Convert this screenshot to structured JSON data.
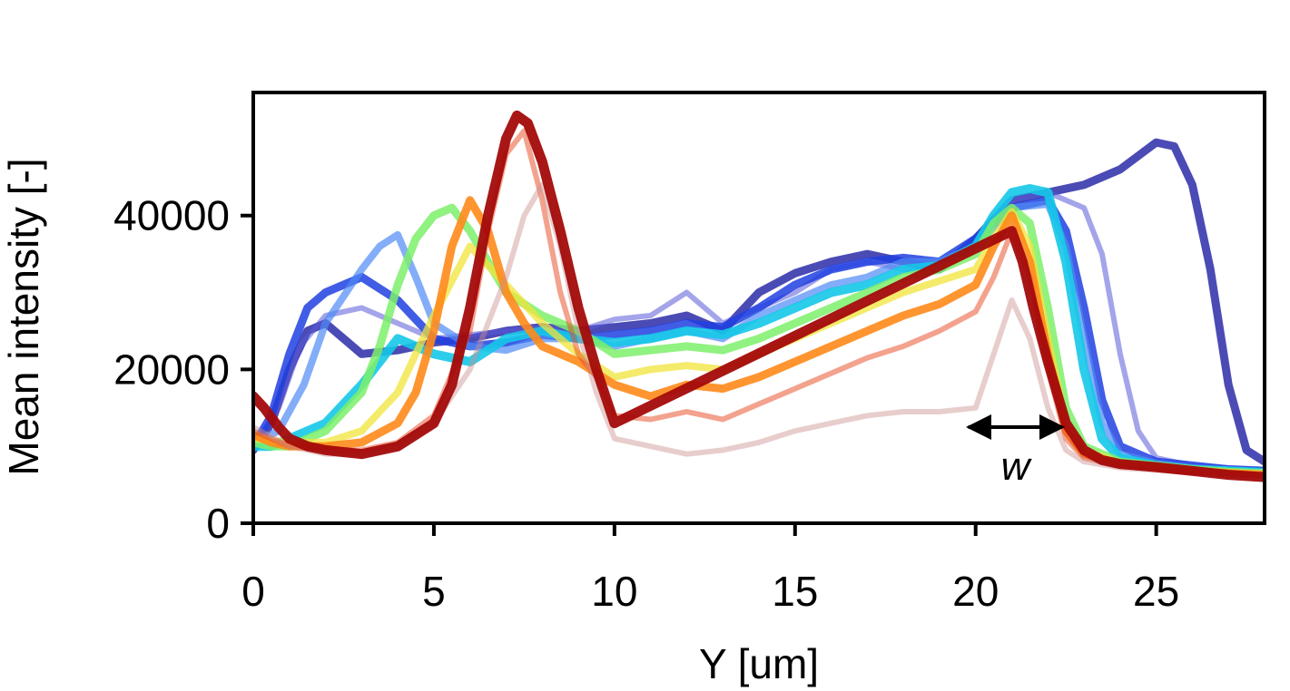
{
  "chart_data": {
    "type": "line",
    "title": "",
    "xlabel": "Y [um]",
    "ylabel": "Mean intensity [-]",
    "xlim": [
      0,
      28
    ],
    "ylim": [
      0,
      56000
    ],
    "xticks": [
      0,
      5,
      10,
      15,
      20,
      25
    ],
    "xtick_labels": [
      "0",
      "5",
      "10",
      "15",
      "20",
      "25"
    ],
    "yticks": [
      0,
      20000,
      40000
    ],
    "ytick_labels": [
      "0",
      "20000",
      "40000"
    ],
    "grid": false,
    "legend": "none",
    "colormap": "jet",
    "annotation": {
      "text": "w",
      "arrow_x": [
        19.8,
        22.4
      ],
      "arrow_y": 12500
    },
    "series": [
      {
        "color": "#2b2ba8",
        "opacity": 0.85,
        "width": 9,
        "x": [
          0,
          0.5,
          1,
          1.5,
          2,
          2.5,
          3,
          4,
          5,
          6,
          7,
          8,
          9,
          10,
          11,
          12,
          13,
          14,
          15,
          16,
          17,
          18,
          19,
          20,
          21,
          22,
          23,
          24,
          25,
          25.5,
          26,
          26.5,
          27,
          27.5,
          28
        ],
        "y": [
          9500,
          13000,
          20000,
          25000,
          26000,
          24000,
          22000,
          22500,
          23500,
          24000,
          25000,
          25500,
          25000,
          25500,
          26000,
          27000,
          25000,
          30000,
          32500,
          34000,
          35000,
          34000,
          33000,
          37000,
          42000,
          43000,
          44000,
          46000,
          49500,
          49000,
          44000,
          33000,
          18000,
          9500,
          8000
        ]
      },
      {
        "color": "#5a5ad8",
        "opacity": 0.55,
        "width": 6,
        "x": [
          0,
          0.7,
          1.3,
          2,
          3,
          4,
          5,
          6,
          7,
          8,
          9,
          10,
          11,
          12,
          13,
          14,
          15,
          16,
          17,
          18,
          19,
          20,
          21,
          22,
          23,
          23.5,
          24,
          24.5,
          25,
          26,
          27,
          28
        ],
        "y": [
          10000,
          15000,
          23000,
          27000,
          28000,
          26000,
          24000,
          24500,
          25000,
          25500,
          25000,
          26500,
          27000,
          30000,
          26000,
          28000,
          30000,
          33000,
          34000,
          33000,
          33000,
          36000,
          42000,
          43000,
          41000,
          35000,
          22000,
          12000,
          8500,
          7500,
          7200,
          7000
        ]
      },
      {
        "color": "#2040e0",
        "opacity": 0.85,
        "width": 9,
        "x": [
          0,
          0.5,
          1,
          1.5,
          2,
          3,
          4,
          5,
          6,
          7,
          8,
          9,
          10,
          11,
          12,
          13,
          14,
          15,
          16,
          17,
          18,
          19,
          20,
          21,
          22,
          22.5,
          23,
          23.5,
          24,
          25,
          26,
          27,
          28
        ],
        "y": [
          10000,
          14000,
          22000,
          28000,
          30000,
          32000,
          29000,
          24000,
          23000,
          23500,
          24500,
          24000,
          24500,
          25000,
          26000,
          25500,
          28000,
          31000,
          33000,
          34000,
          34500,
          34000,
          37000,
          41000,
          42000,
          38000,
          28000,
          16000,
          10000,
          8000,
          7500,
          7000,
          6800
        ]
      },
      {
        "color": "#4f8af5",
        "opacity": 0.7,
        "width": 8,
        "x": [
          0,
          0.7,
          1.4,
          2,
          3,
          3.5,
          4,
          4.5,
          5,
          6,
          7,
          8,
          9,
          10,
          11,
          12,
          13,
          14,
          15,
          16,
          17,
          18,
          19,
          20,
          21,
          22,
          22.5,
          23,
          23.5,
          24,
          25,
          26,
          27,
          28
        ],
        "y": [
          10500,
          12000,
          18000,
          26000,
          33000,
          36000,
          37500,
          32000,
          26000,
          23000,
          22500,
          24000,
          24000,
          23000,
          24000,
          25000,
          24000,
          27000,
          29000,
          31000,
          32000,
          34000,
          34000,
          36000,
          41000,
          41500,
          36000,
          24000,
          13000,
          9000,
          7800,
          7200,
          6900,
          6600
        ]
      },
      {
        "color": "#15c8e8",
        "opacity": 0.9,
        "width": 10,
        "x": [
          0,
          0.5,
          1,
          2,
          3,
          4,
          5,
          6,
          7,
          8,
          9,
          10,
          11,
          12,
          13,
          14,
          15,
          16,
          17,
          18,
          19,
          20,
          20.5,
          21,
          21.5,
          22,
          22.5,
          23,
          23.5,
          24,
          25,
          26,
          27,
          28
        ],
        "y": [
          10000,
          10000,
          11000,
          13000,
          18000,
          24000,
          22000,
          21000,
          24000,
          25000,
          24000,
          23500,
          24000,
          25000,
          24500,
          26000,
          28000,
          30000,
          31000,
          33000,
          33500,
          36000,
          40000,
          43000,
          43500,
          43000,
          34000,
          20000,
          11000,
          8500,
          7500,
          7000,
          6800,
          6600
        ]
      },
      {
        "color": "#7cf06a",
        "opacity": 0.85,
        "width": 9,
        "x": [
          0,
          0.5,
          1,
          2,
          3,
          3.5,
          4,
          4.5,
          5,
          5.5,
          6,
          7,
          8,
          9,
          10,
          11,
          12,
          13,
          14,
          15,
          16,
          17,
          18,
          19,
          20,
          20.5,
          21,
          21.5,
          22,
          22.5,
          23,
          24,
          25,
          26,
          27,
          28
        ],
        "y": [
          10500,
          10000,
          10000,
          12000,
          17000,
          23000,
          31000,
          37000,
          40000,
          41000,
          38000,
          30000,
          27000,
          25000,
          22000,
          22500,
          23000,
          22500,
          24000,
          26000,
          28000,
          30000,
          32000,
          33000,
          35000,
          39000,
          41000,
          39000,
          28000,
          15000,
          10000,
          8000,
          7500,
          7000,
          6700,
          6500
        ]
      },
      {
        "color": "#f0e43a",
        "opacity": 0.75,
        "width": 8,
        "x": [
          0,
          1,
          2,
          3,
          4,
          5,
          6,
          7,
          8,
          9,
          10,
          11,
          12,
          13,
          14,
          15,
          16,
          17,
          18,
          19,
          20,
          20.5,
          21,
          21.5,
          22,
          22.5,
          23,
          24,
          25,
          26,
          27,
          28
        ],
        "y": [
          11000,
          10500,
          10500,
          12000,
          17000,
          27000,
          36000,
          31000,
          26000,
          22000,
          19000,
          20000,
          20500,
          20000,
          22000,
          24000,
          26000,
          28000,
          30000,
          31500,
          33000,
          37000,
          40500,
          36000,
          24000,
          13000,
          9500,
          7800,
          7300,
          6900,
          6600,
          6400
        ]
      },
      {
        "color": "#ff8a1a",
        "opacity": 0.9,
        "width": 9,
        "x": [
          0,
          0.5,
          1,
          2,
          3,
          4,
          4.5,
          5,
          5.5,
          6,
          6.5,
          7,
          7.5,
          8,
          8.5,
          9,
          10,
          11,
          12,
          13,
          14,
          15,
          16,
          17,
          18,
          19,
          20,
          20.5,
          21,
          21.5,
          22,
          22.5,
          23,
          24,
          25,
          26,
          27,
          28
        ],
        "y": [
          11500,
          10500,
          10000,
          10000,
          10500,
          13000,
          17000,
          25000,
          36000,
          42000,
          38000,
          30000,
          26000,
          23000,
          22000,
          21000,
          18000,
          16500,
          18000,
          17500,
          19000,
          21000,
          23000,
          25000,
          27000,
          28500,
          31000,
          36000,
          40000,
          34000,
          22000,
          12000,
          9000,
          7600,
          7200,
          6800,
          6500,
          6300
        ]
      },
      {
        "color": "#e8461e",
        "opacity": 0.5,
        "width": 6,
        "x": [
          0,
          1,
          2,
          3,
          4,
          5,
          6,
          6.5,
          7,
          7.5,
          8,
          8.5,
          9,
          9.5,
          10,
          11,
          12,
          13,
          14,
          15,
          16,
          17,
          18,
          19,
          20,
          20.5,
          21,
          21.5,
          22,
          22.5,
          23,
          24,
          25,
          26,
          27,
          28
        ],
        "y": [
          12000,
          10000,
          9500,
          9500,
          10500,
          14000,
          25000,
          38000,
          48000,
          51000,
          42000,
          30000,
          22000,
          19000,
          14000,
          13500,
          14500,
          13500,
          15500,
          17500,
          19500,
          21500,
          23000,
          25000,
          27500,
          32000,
          38000,
          32000,
          20000,
          11000,
          8500,
          7400,
          7000,
          6700,
          6400,
          6200
        ]
      },
      {
        "color": "#cc9090",
        "opacity": 0.45,
        "width": 6,
        "x": [
          0,
          1,
          2,
          3,
          4,
          5,
          6,
          7,
          7.5,
          8,
          8.5,
          9,
          9.5,
          10,
          11,
          12,
          13,
          14,
          15,
          16,
          17,
          18,
          19,
          20,
          20.5,
          21,
          21.5,
          22,
          22.5,
          23,
          24,
          25,
          26,
          27,
          28
        ],
        "y": [
          12500,
          10000,
          9000,
          9000,
          10000,
          13000,
          20000,
          32000,
          40000,
          44000,
          36000,
          25000,
          17000,
          11000,
          10000,
          9000,
          9500,
          10500,
          12000,
          13000,
          14000,
          14500,
          14500,
          15000,
          22000,
          29000,
          24000,
          15000,
          9500,
          8000,
          7200,
          6900,
          6600,
          6300,
          6100
        ]
      },
      {
        "color": "#a30a0a",
        "opacity": 0.95,
        "width": 11,
        "x": [
          0,
          0.3,
          0.7,
          1,
          1.5,
          2,
          3,
          4,
          5,
          5.5,
          6,
          6.5,
          7,
          7.3,
          7.6,
          8,
          8.5,
          9,
          9.5,
          10,
          21,
          21.3,
          21.6,
          22,
          22.5,
          23,
          23.5,
          24,
          25,
          26,
          27,
          28
        ],
        "y": [
          16500,
          15000,
          12500,
          11000,
          10000,
          9500,
          9000,
          10000,
          13000,
          18000,
          28000,
          40000,
          50000,
          53000,
          52000,
          47000,
          38000,
          28000,
          20000,
          13000,
          38000,
          34000,
          28000,
          21000,
          13000,
          9500,
          8200,
          7700,
          7300,
          6800,
          6300,
          6000
        ]
      }
    ]
  }
}
